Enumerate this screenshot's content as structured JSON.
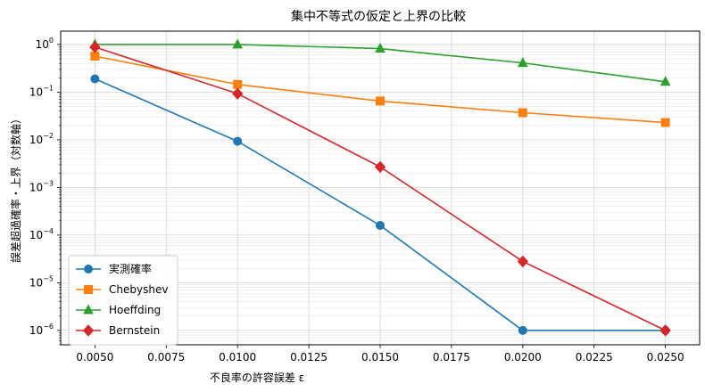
{
  "chart_data": {
    "type": "line",
    "title": "集中不等式の仮定と上界の比較",
    "xlabel": "不良率の許容誤差 ε",
    "ylabel": "誤差超過確率・上界（対数軸）",
    "x": [
      0.005,
      0.01,
      0.015,
      0.02,
      0.025
    ],
    "xlim": [
      0.0038,
      0.0262
    ],
    "ylim": [
      5e-07,
      1.9
    ],
    "yscale": "log",
    "grid": true,
    "legend_position": "lower-left",
    "x_ticks": [
      "0.0050",
      "0.0075",
      "0.0100",
      "0.0125",
      "0.0150",
      "0.0175",
      "0.0200",
      "0.0225",
      "0.0250"
    ],
    "series": [
      {
        "name": "実測確率",
        "color": "#1f77b4",
        "marker": "circle",
        "values": [
          0.19,
          0.0093,
          0.00016,
          1e-06,
          1e-06
        ]
      },
      {
        "name": "Chebyshev",
        "color": "#ff7f0e",
        "marker": "square",
        "values": [
          0.57,
          0.145,
          0.065,
          0.037,
          0.023
        ]
      },
      {
        "name": "Hoeffding",
        "color": "#2ca02c",
        "marker": "triangle",
        "values": [
          1.0,
          1.0,
          0.82,
          0.41,
          0.165
        ]
      },
      {
        "name": "Bernstein",
        "color": "#d62728",
        "marker": "diamond",
        "values": [
          0.88,
          0.093,
          0.0027,
          2.8e-05,
          1e-06
        ]
      }
    ]
  }
}
